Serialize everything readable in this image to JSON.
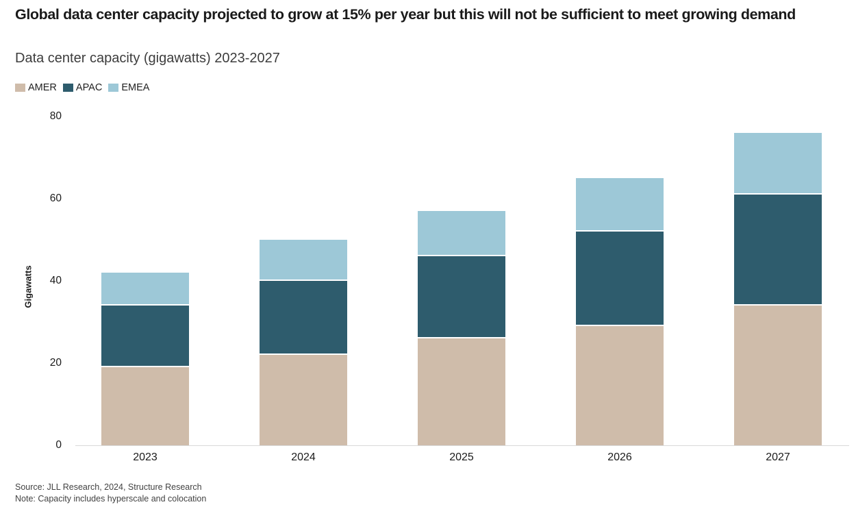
{
  "header": {
    "title": "Global data center capacity projected to grow at 15% per year but this will not be sufficient to meet growing demand",
    "subtitle": "Data center capacity (gigawatts) 2023-2027"
  },
  "chart_data": {
    "type": "bar",
    "stacked": true,
    "title": "Global data center capacity projected to grow at 15% per year but this will not be sufficient to meet growing demand",
    "subtitle": "Data center capacity (gigawatts) 2023-2027",
    "categories": [
      "2023",
      "2024",
      "2025",
      "2026",
      "2027"
    ],
    "series": [
      {
        "name": "AMER",
        "color": "#cfbcaa",
        "values": [
          19,
          22,
          26,
          29,
          34
        ]
      },
      {
        "name": "APAC",
        "color": "#2e5c6d",
        "values": [
          15,
          18,
          20,
          23,
          27
        ]
      },
      {
        "name": "EMEA",
        "color": "#9dc8d7",
        "values": [
          8,
          10,
          11,
          13,
          15
        ]
      }
    ],
    "stack_totals": [
      42,
      50,
      57,
      65,
      76
    ],
    "xlabel": "",
    "ylabel": "Gigawatts",
    "yticks": [
      0,
      20,
      40,
      60,
      80
    ],
    "ylim": [
      0,
      80
    ],
    "grid": false,
    "legend_position": "top-left",
    "axis_line_color": "#d9d9d9",
    "segment_separator_color": "#ffffff"
  },
  "footer": {
    "source": "Source: JLL Research, 2024, Structure Research",
    "note": "Note: Capacity includes hyperscale and colocation"
  }
}
